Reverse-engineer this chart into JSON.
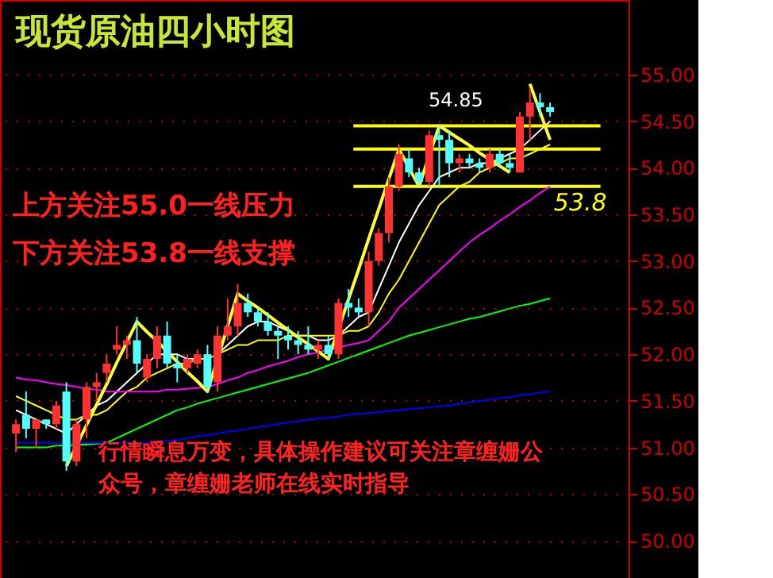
{
  "chart_data": {
    "type": "candlestick",
    "title": "现货原油四小时图",
    "categories": [
      null,
      null,
      null,
      null,
      null,
      null,
      null,
      null,
      null,
      null,
      null,
      null,
      null,
      null,
      null,
      null,
      null,
      null,
      null,
      null,
      null,
      null,
      null,
      null,
      null,
      null,
      null,
      null,
      null,
      null,
      null,
      null,
      null,
      null,
      null,
      null,
      null,
      null,
      null,
      null,
      null,
      null,
      null,
      null,
      null,
      null,
      null,
      null,
      null,
      null,
      null,
      null,
      null,
      null
    ],
    "ohlc": [
      [
        51.15,
        51.3,
        50.95,
        51.25
      ],
      [
        51.35,
        51.6,
        51.1,
        51.2
      ],
      [
        51.2,
        51.3,
        51.0,
        51.3
      ],
      [
        51.3,
        51.3,
        51.2,
        51.25
      ],
      [
        51.25,
        51.5,
        51.2,
        51.45
      ],
      [
        51.6,
        51.7,
        50.75,
        50.85
      ],
      [
        50.85,
        51.3,
        50.8,
        51.25
      ],
      [
        51.3,
        51.7,
        51.1,
        51.65
      ],
      [
        51.65,
        51.8,
        51.5,
        51.7
      ],
      [
        51.8,
        52.0,
        51.7,
        51.9
      ],
      [
        52.05,
        52.3,
        52.0,
        52.1
      ],
      [
        52.1,
        52.2,
        51.95,
        52.15
      ],
      [
        52.15,
        52.4,
        51.8,
        51.9
      ],
      [
        51.75,
        52.0,
        51.7,
        51.95
      ],
      [
        51.95,
        52.3,
        51.85,
        52.2
      ],
      [
        52.2,
        52.35,
        51.85,
        51.9
      ],
      [
        51.9,
        52.0,
        51.7,
        51.85
      ],
      [
        51.85,
        52.0,
        51.8,
        51.95
      ],
      [
        51.9,
        52.05,
        51.85,
        52.0
      ],
      [
        52.0,
        52.1,
        51.6,
        51.65
      ],
      [
        51.7,
        52.3,
        51.6,
        52.2
      ],
      [
        52.2,
        52.6,
        52.15,
        52.3
      ],
      [
        52.3,
        52.75,
        52.2,
        52.55
      ],
      [
        52.55,
        52.65,
        52.4,
        52.45
      ],
      [
        52.45,
        52.5,
        52.3,
        52.35
      ],
      [
        52.35,
        52.45,
        52.2,
        52.25
      ],
      [
        52.25,
        52.3,
        51.95,
        52.2
      ],
      [
        52.2,
        52.3,
        52.05,
        52.15
      ],
      [
        52.15,
        52.25,
        52.0,
        52.1
      ],
      [
        52.1,
        52.3,
        52.0,
        52.05
      ],
      [
        52.05,
        52.15,
        51.95,
        52.1
      ],
      [
        52.1,
        52.2,
        51.95,
        52.0
      ],
      [
        52.0,
        52.6,
        51.95,
        52.55
      ],
      [
        52.55,
        52.7,
        52.4,
        52.5
      ],
      [
        52.5,
        52.6,
        52.4,
        52.45
      ],
      [
        52.45,
        53.1,
        52.3,
        53.0
      ],
      [
        53.0,
        53.35,
        52.95,
        53.3
      ],
      [
        53.3,
        53.9,
        53.2,
        53.8
      ],
      [
        53.8,
        54.25,
        53.75,
        54.15
      ],
      [
        54.1,
        54.2,
        53.9,
        53.95
      ],
      [
        53.95,
        54.0,
        53.8,
        53.85
      ],
      [
        53.85,
        54.4,
        53.8,
        54.35
      ],
      [
        54.35,
        54.45,
        53.8,
        54.3
      ],
      [
        54.3,
        54.4,
        53.9,
        54.05
      ],
      [
        54.05,
        54.15,
        53.95,
        54.1
      ],
      [
        54.1,
        54.15,
        54.0,
        54.05
      ],
      [
        54.05,
        54.1,
        53.95,
        54.0
      ],
      [
        54.0,
        54.2,
        53.95,
        54.15
      ],
      [
        54.15,
        54.2,
        54.0,
        54.05
      ],
      [
        54.05,
        54.15,
        53.95,
        54.0
      ],
      [
        53.95,
        54.6,
        53.95,
        54.55
      ],
      [
        54.55,
        54.85,
        54.3,
        54.7
      ],
      [
        54.7,
        54.8,
        54.55,
        54.65
      ],
      [
        54.65,
        54.7,
        54.55,
        54.6
      ]
    ],
    "series": [
      {
        "type": "line",
        "color": "#ffffff",
        "values": [
          51.4,
          51.35,
          51.3,
          51.25,
          51.2,
          51.15,
          51.25,
          51.35,
          51.45,
          51.5,
          51.6,
          51.7,
          51.8,
          51.9,
          52.0,
          52.0,
          52.0,
          51.95,
          51.95,
          null,
          52.0,
          52.1,
          52.2,
          52.3,
          52.35,
          52.35,
          52.3,
          52.25,
          52.2,
          52.2,
          52.15,
          52.15,
          52.2,
          52.3,
          52.4,
          52.45,
          52.7,
          52.95,
          53.2,
          53.4,
          53.6,
          53.75,
          53.9,
          53.95,
          54.0,
          54.0,
          54.05,
          54.05,
          54.1,
          54.15,
          54.2,
          54.3,
          54.4,
          54.5
        ]
      },
      {
        "type": "line",
        "color": "#ffff00",
        "values": [
          51.55,
          51.5,
          51.45,
          51.4,
          51.35,
          51.3,
          51.3,
          51.35,
          51.35,
          51.4,
          51.5,
          51.6,
          51.65,
          51.75,
          51.8,
          51.85,
          51.9,
          51.9,
          51.95,
          51.95,
          52.0,
          52.05,
          52.1,
          52.1,
          52.15,
          52.15,
          52.15,
          52.2,
          52.2,
          52.2,
          52.2,
          52.2,
          52.2,
          52.25,
          52.25,
          52.3,
          52.45,
          52.65,
          52.8,
          53.0,
          53.2,
          53.4,
          53.6,
          53.7,
          53.8,
          53.85,
          53.95,
          54.0,
          54.05,
          54.1,
          54.1,
          54.15,
          54.2,
          54.25
        ]
      },
      {
        "type": "line",
        "color": "#ff00ff",
        "values": [
          51.75,
          51.73,
          51.72,
          51.7,
          51.68,
          51.67,
          51.65,
          51.63,
          51.62,
          51.6,
          51.6,
          51.6,
          51.6,
          51.6,
          51.6,
          51.62,
          51.62,
          51.63,
          51.64,
          51.65,
          51.68,
          51.72,
          51.75,
          51.8,
          51.83,
          51.87,
          51.9,
          51.93,
          51.97,
          52.0,
          52.02,
          52.05,
          52.07,
          52.1,
          52.12,
          52.15,
          52.25,
          52.35,
          52.5,
          52.6,
          52.7,
          52.8,
          52.9,
          53.0,
          53.1,
          53.2,
          53.28,
          53.35,
          53.43,
          53.5,
          53.58,
          53.65,
          53.73,
          53.8
        ]
      },
      {
        "type": "line",
        "color": "#00ff00",
        "values": [
          51.0,
          51.0,
          51.0,
          51.0,
          51.02,
          51.02,
          51.03,
          51.03,
          51.04,
          51.05,
          51.1,
          51.15,
          51.2,
          51.25,
          51.3,
          51.35,
          51.4,
          51.43,
          51.47,
          51.5,
          51.53,
          51.56,
          51.59,
          51.62,
          51.65,
          51.68,
          51.71,
          51.74,
          51.77,
          51.8,
          51.84,
          51.88,
          51.92,
          51.96,
          52.0,
          52.04,
          52.08,
          52.12,
          52.16,
          52.2,
          52.23,
          52.26,
          52.29,
          52.32,
          52.35,
          52.38,
          52.4,
          52.43,
          52.46,
          52.49,
          52.52,
          52.54,
          52.57,
          52.6
        ]
      },
      {
        "type": "line",
        "color": "#0000ff",
        "values": [
          51.05,
          51.05,
          51.05,
          51.05,
          51.05,
          51.05,
          51.05,
          51.05,
          51.05,
          51.05,
          51.05,
          51.05,
          51.05,
          51.05,
          51.05,
          51.07,
          51.08,
          51.1,
          51.12,
          51.13,
          51.15,
          51.17,
          51.18,
          51.2,
          51.22,
          51.23,
          51.25,
          51.27,
          51.28,
          51.3,
          51.31,
          51.32,
          51.33,
          51.35,
          51.36,
          51.37,
          51.38,
          51.39,
          51.4,
          51.41,
          51.42,
          51.43,
          51.44,
          51.45,
          51.47,
          51.48,
          51.5,
          51.51,
          51.53,
          51.54,
          51.56,
          51.57,
          51.59,
          51.6
        ]
      },
      {
        "type": "line",
        "color": "#ffff33",
        "values": [
          null,
          null,
          null,
          null,
          null,
          50.8,
          51.02,
          51.24,
          51.46,
          51.68,
          51.91,
          52.13,
          52.35,
          52.24,
          52.14,
          52.03,
          51.92,
          51.81,
          51.71,
          51.6,
          51.95,
          52.3,
          52.65,
          52.57,
          52.5,
          52.42,
          52.34,
          52.26,
          52.18,
          52.11,
          52.03,
          51.95,
          52.27,
          52.59,
          52.91,
          53.24,
          53.56,
          53.88,
          54.2,
          54.0,
          53.8,
          54.13,
          54.45,
          54.38,
          54.31,
          54.24,
          54.16,
          54.09,
          54.02,
          53.95,
          null,
          54.9,
          54.6,
          54.3
        ]
      }
    ],
    "ylim": [
      49.6,
      55.8
    ],
    "yticks": [
      {
        "value": 50,
        "label": "50.00"
      },
      {
        "value": 50.5,
        "label": "50.50"
      },
      {
        "value": 51,
        "label": "51.00"
      },
      {
        "value": 51.5,
        "label": "51.50"
      },
      {
        "value": 52,
        "label": "52.00"
      },
      {
        "value": 52.5,
        "label": "52.50"
      },
      {
        "value": 53,
        "label": "53.00"
      },
      {
        "value": 53.5,
        "label": "53.50"
      },
      {
        "value": 54,
        "label": "54.00"
      },
      {
        "value": 54.5,
        "label": "54.50"
      },
      {
        "value": 55,
        "label": "55.00"
      }
    ],
    "ref_lines": [
      {
        "axis": "y",
        "value": 53.8,
        "label": "53.8",
        "color": "#ffff00"
      },
      {
        "axis": "y",
        "value": 54.2,
        "color": "#ffff00"
      },
      {
        "axis": "y",
        "value": 54.45,
        "color": "#ffff00"
      }
    ],
    "annotations": [
      "54.85",
      "上方关注55.0一线压力",
      "下方关注53.8一线支撑",
      "行情瞬息万变，具体操作建议可关注章缠姗公众号，章缠姗老师在线实时指导"
    ],
    "grid": "y",
    "tick_labels": "y"
  }
}
